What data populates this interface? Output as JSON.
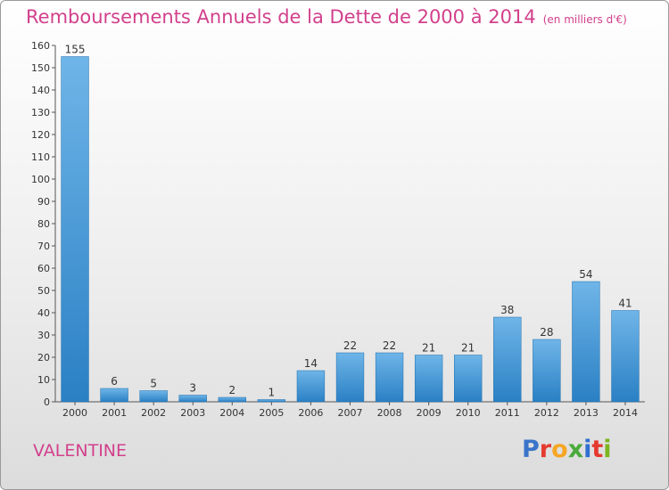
{
  "title": "Remboursements Annuels de la Dette de 2000 à 2014",
  "unit_note": "(en milliers d'€)",
  "commune": "VALENTINE",
  "logo": {
    "letters": [
      "P",
      "r",
      "o",
      "x",
      "i",
      "t",
      "i"
    ],
    "colors": [
      "#3a74c9",
      "#e53a2f",
      "#f5a623",
      "#4aaa3c",
      "#2f6fd2",
      "#e53a2f",
      "#7ab51d"
    ]
  },
  "colors": {
    "accent": "#d2408c",
    "bar_light": "#6fb5e8",
    "bar_dark": "#2a80c4"
  },
  "chart_data": {
    "type": "bar",
    "categories": [
      "2000",
      "2001",
      "2002",
      "2003",
      "2004",
      "2005",
      "2006",
      "2007",
      "2008",
      "2009",
      "2010",
      "2011",
      "2012",
      "2013",
      "2014"
    ],
    "values": [
      155,
      6,
      5,
      3,
      2,
      1,
      14,
      22,
      22,
      21,
      21,
      38,
      28,
      54,
      41
    ],
    "ylim": [
      0,
      160
    ],
    "yticks": [
      0,
      10,
      20,
      30,
      40,
      50,
      60,
      70,
      80,
      90,
      100,
      110,
      120,
      130,
      140,
      150,
      160
    ],
    "grid": false,
    "data_labels": true
  }
}
